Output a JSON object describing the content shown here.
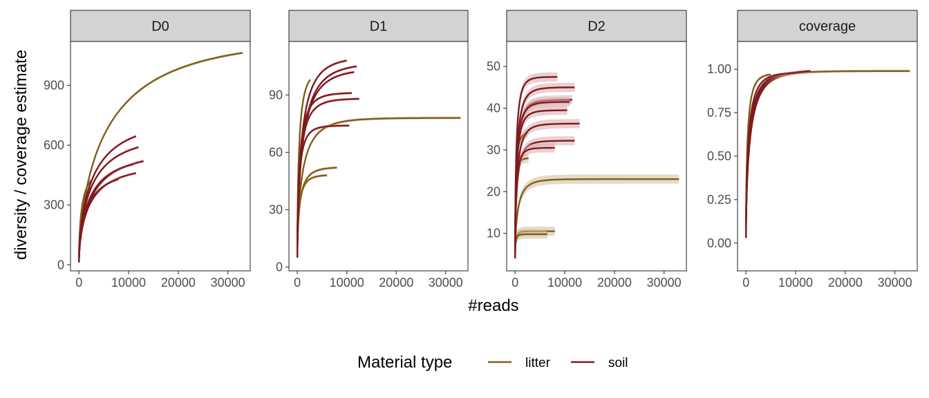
{
  "chart_data": {
    "type": "line",
    "layout": "faceted-4-panels",
    "xlabel": "#reads",
    "ylabel": "diversity / coverage estimate",
    "legend": {
      "title": "Material type",
      "position": "bottom",
      "entries": [
        {
          "name": "litter",
          "color": "#7f5f16"
        },
        {
          "name": "soil",
          "color": "#7f1a1f"
        }
      ]
    },
    "colors": {
      "litter": "#7f5f16",
      "soil": "#7f1a1f",
      "litter_ribbon": "#cdbb9a",
      "soil_ribbon": "#d9a9ad",
      "strip": "#d3d3d3"
    },
    "panels": [
      {
        "label": "D0",
        "xlim": [
          -1700,
          34500
        ],
        "xticks": [
          0,
          10000,
          20000,
          30000
        ],
        "ylim": [
          -30,
          1120
        ],
        "yticks": [
          0,
          300,
          600,
          900
        ],
        "series": [
          {
            "group": "litter",
            "max_reads": 33000,
            "start": 12,
            "end": 1063,
            "k": 2.7
          },
          {
            "group": "litter",
            "max_reads": 2500,
            "start": 12,
            "end": 425,
            "k": 2.2
          },
          {
            "group": "litter",
            "max_reads": 2300,
            "start": 12,
            "end": 390,
            "k": 2.2
          },
          {
            "group": "soil",
            "max_reads": 11500,
            "start": 12,
            "end": 645,
            "k": 2.2
          },
          {
            "group": "soil",
            "max_reads": 12000,
            "start": 12,
            "end": 590,
            "k": 2.4
          },
          {
            "group": "soil",
            "max_reads": 13000,
            "start": 12,
            "end": 520,
            "k": 2.5
          },
          {
            "group": "soil",
            "max_reads": 11000,
            "start": 12,
            "end": 505,
            "k": 2.5
          },
          {
            "group": "soil",
            "max_reads": 11500,
            "start": 12,
            "end": 460,
            "k": 2.6
          },
          {
            "group": "soil",
            "max_reads": 8000,
            "start": 12,
            "end": 430,
            "k": 2.4
          }
        ]
      },
      {
        "label": "D1",
        "xlim": [
          -1700,
          34500
        ],
        "xticks": [
          0,
          10000,
          20000,
          30000
        ],
        "ylim": [
          -2,
          118
        ],
        "yticks": [
          0,
          30,
          60,
          90
        ],
        "series": [
          {
            "group": "litter",
            "max_reads": 33000,
            "start": 5,
            "end": 78,
            "k": 8
          },
          {
            "group": "litter",
            "max_reads": 2600,
            "start": 5,
            "end": 98,
            "k": 3
          },
          {
            "group": "litter",
            "max_reads": 8000,
            "start": 5,
            "end": 52,
            "k": 5
          },
          {
            "group": "litter",
            "max_reads": 6000,
            "start": 5,
            "end": 48,
            "k": 5
          },
          {
            "group": "soil",
            "max_reads": 10000,
            "start": 5,
            "end": 108,
            "k": 4
          },
          {
            "group": "soil",
            "max_reads": 12000,
            "start": 5,
            "end": 105,
            "k": 4
          },
          {
            "group": "soil",
            "max_reads": 11500,
            "start": 5,
            "end": 102,
            "k": 4
          },
          {
            "group": "soil",
            "max_reads": 11000,
            "start": 5,
            "end": 91,
            "k": 6
          },
          {
            "group": "soil",
            "max_reads": 12500,
            "start": 5,
            "end": 88,
            "k": 6
          },
          {
            "group": "soil",
            "max_reads": 10500,
            "start": 5,
            "end": 74,
            "k": 7
          }
        ]
      },
      {
        "label": "D2",
        "xlim": [
          -1700,
          34500
        ],
        "xticks": [
          0,
          10000,
          20000,
          30000
        ],
        "ylim": [
          1,
          56
        ],
        "yticks": [
          10,
          20,
          30,
          40,
          50
        ],
        "series": [
          {
            "group": "litter",
            "max_reads": 33000,
            "start": 4,
            "end": 23,
            "k": 12
          },
          {
            "group": "litter",
            "max_reads": 2500,
            "start": 4,
            "end": 34,
            "k": 5
          },
          {
            "group": "litter",
            "max_reads": 2700,
            "start": 4,
            "end": 28,
            "k": 6
          },
          {
            "group": "litter",
            "max_reads": 8000,
            "start": 4,
            "end": 10.5,
            "k": 12
          },
          {
            "group": "litter",
            "max_reads": 6500,
            "start": 4,
            "end": 9.8,
            "k": 12
          },
          {
            "group": "soil",
            "max_reads": 8500,
            "start": 4,
            "end": 47.5,
            "k": 8
          },
          {
            "group": "soil",
            "max_reads": 12000,
            "start": 4,
            "end": 45,
            "k": 8
          },
          {
            "group": "soil",
            "max_reads": 11500,
            "start": 4,
            "end": 42,
            "k": 8
          },
          {
            "group": "soil",
            "max_reads": 11000,
            "start": 4,
            "end": 41.5,
            "k": 8
          },
          {
            "group": "soil",
            "max_reads": 10500,
            "start": 4,
            "end": 39.5,
            "k": 8
          },
          {
            "group": "soil",
            "max_reads": 13000,
            "start": 4,
            "end": 36.3,
            "k": 8
          },
          {
            "group": "soil",
            "max_reads": 12000,
            "start": 4,
            "end": 32.2,
            "k": 8
          },
          {
            "group": "soil",
            "max_reads": 8000,
            "start": 4,
            "end": 30.5,
            "k": 8
          }
        ]
      },
      {
        "label": "coverage",
        "xlim": [
          -1700,
          34500
        ],
        "xticks": [
          0,
          10000,
          20000,
          30000
        ],
        "ylim": [
          -0.16,
          1.16
        ],
        "yticks": [
          0.0,
          0.25,
          0.5,
          0.75,
          1.0
        ],
        "series": [
          {
            "group": "litter",
            "max_reads": 33000,
            "start": 0.03,
            "end": 0.99,
            "k": 9
          },
          {
            "group": "litter",
            "max_reads": 5000,
            "start": 0.03,
            "end": 0.97,
            "k": 5
          },
          {
            "group": "soil",
            "max_reads": 13000,
            "start": 0.03,
            "end": 0.99,
            "k": 5
          },
          {
            "group": "soil",
            "max_reads": 11500,
            "start": 0.03,
            "end": 0.985,
            "k": 5
          },
          {
            "group": "soil",
            "max_reads": 10000,
            "start": 0.03,
            "end": 0.98,
            "k": 5
          },
          {
            "group": "soil",
            "max_reads": 8000,
            "start": 0.03,
            "end": 0.975,
            "k": 5
          }
        ]
      }
    ]
  }
}
